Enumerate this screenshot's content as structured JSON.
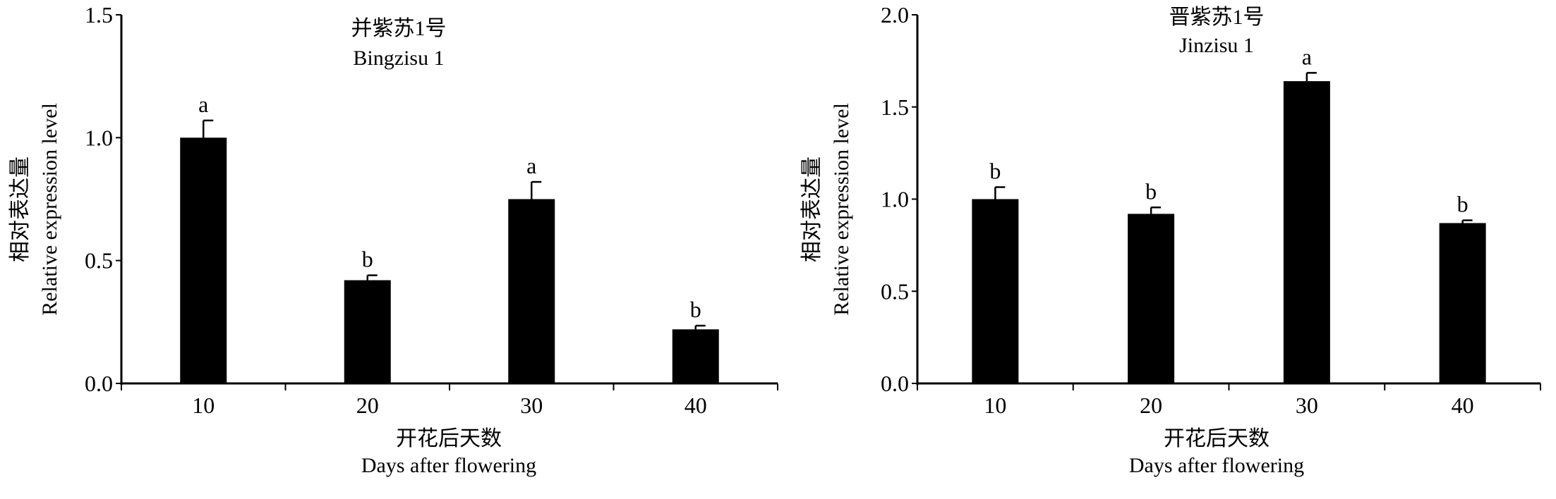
{
  "chart_data": [
    {
      "type": "bar",
      "title": "并紫苏1号",
      "subtitle": "Bingzisu 1",
      "xlabel": "开花后天数",
      "xlabel_en": "Days after flowering",
      "ylabel": "相对表达量",
      "ylabel_en": "Relative expression level",
      "categories": [
        "10",
        "20",
        "30",
        "40"
      ],
      "values": [
        1.0,
        0.42,
        0.75,
        0.22
      ],
      "errors": [
        0.07,
        0.02,
        0.07,
        0.015
      ],
      "significance": [
        "a",
        "b",
        "a",
        "b"
      ],
      "ylim": [
        0,
        1.5
      ],
      "yticks": [
        "0.0",
        "0.5",
        "1.0",
        "1.5"
      ],
      "ytick_values": [
        0,
        0.5,
        1.0,
        1.5
      ],
      "bar_color": "#000000",
      "grid": false
    },
    {
      "type": "bar",
      "title": "晋紫苏1号",
      "subtitle": "Jinzisu 1",
      "xlabel": "开花后天数",
      "xlabel_en": "Days after flowering",
      "ylabel": "相对表达量",
      "ylabel_en": "Relative expression level",
      "categories": [
        "10",
        "20",
        "30",
        "40"
      ],
      "values": [
        1.0,
        0.92,
        1.64,
        0.87
      ],
      "errors": [
        0.065,
        0.035,
        0.045,
        0.015
      ],
      "significance": [
        "b",
        "b",
        "a",
        "b"
      ],
      "ylim": [
        0,
        2.0
      ],
      "yticks": [
        "0.0",
        "0.5",
        "1.0",
        "1.5",
        "2.0"
      ],
      "ytick_values": [
        0,
        0.5,
        1.0,
        1.5,
        2.0
      ],
      "bar_color": "#000000",
      "grid": false
    }
  ]
}
